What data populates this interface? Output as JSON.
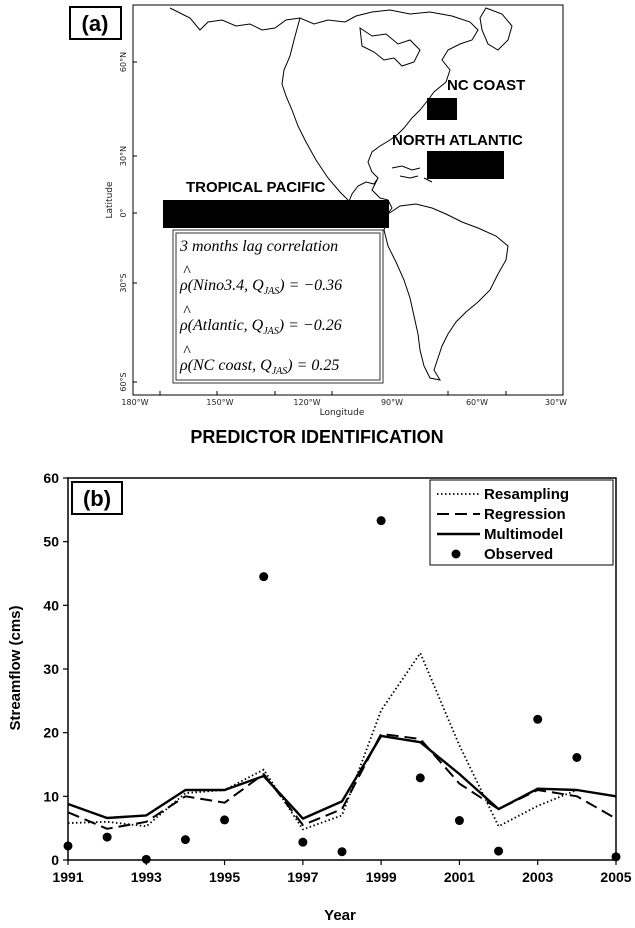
{
  "panel_a": {
    "label": "(a)",
    "regions": {
      "nc_coast": "NC COAST",
      "north_atlantic": "NORTH ATLANTIC",
      "tropical_pacific": "TROPICAL PACIFIC"
    },
    "lon_ticks": [
      "180°W",
      "150°W",
      "120°W",
      "90°W",
      "60°W",
      "30°W"
    ],
    "lat_ticks": [
      "60°N",
      "30°N",
      "0°",
      "30°S",
      "60°S"
    ],
    "xlabel": "Longitude",
    "ylabel": "Latitude",
    "correlation_box": {
      "title": "3 months lag correlation",
      "rows": [
        "ρ̂(Nino3.4, Q_JAS) = −0.36",
        "ρ̂(Atlantic, Q_JAS) = −0.26",
        "ρ̂(NC coast, Q_JAS) = 0.25"
      ],
      "rows_display": [
        {
          "arg": "Nino3.4",
          "value": "−0.36"
        },
        {
          "arg": "Atlantic",
          "value": "−0.26"
        },
        {
          "arg": "NC coast",
          "value": "0.25"
        }
      ],
      "subscript": "JAS",
      "symbol": "ρ",
      "hat": "^"
    },
    "title": "PREDICTOR IDENTIFICATION"
  },
  "chart_data": {
    "type": "line",
    "label": "(b)",
    "xlabel": "Year",
    "ylabel": "Streamflow (cms)",
    "xlim": [
      1991,
      2005
    ],
    "ylim": [
      0,
      60
    ],
    "x_ticks": [
      "1991",
      "1993",
      "1995",
      "1997",
      "1999",
      "2001",
      "2003",
      "2005"
    ],
    "y_ticks": [
      "0",
      "10",
      "20",
      "30",
      "40",
      "50",
      "60"
    ],
    "legend_position": "top-right",
    "x": [
      1991,
      1992,
      1993,
      1994,
      1995,
      1996,
      1997,
      1998,
      1999,
      2000,
      2001,
      2002,
      2003,
      2004,
      2005
    ],
    "series": [
      {
        "name": "Resampling",
        "style": "dotted",
        "values": [
          5.8,
          6.0,
          5.3,
          10.5,
          11.0,
          14.2,
          4.8,
          7.0,
          23.5,
          32.5,
          18.0,
          5.3,
          8.5,
          11.0,
          10.0
        ]
      },
      {
        "name": "Regression",
        "style": "dashed",
        "values": [
          7.5,
          4.9,
          6.0,
          10.0,
          9.0,
          13.5,
          5.5,
          8.0,
          19.8,
          19.0,
          12.0,
          8.0,
          11.0,
          10.0,
          6.5
        ]
      },
      {
        "name": "Multimodel",
        "style": "solid",
        "values": [
          8.8,
          6.6,
          7.0,
          11.0,
          11.0,
          13.2,
          6.5,
          9.2,
          19.5,
          18.5,
          13.5,
          8.0,
          11.2,
          11.0,
          10.0
        ]
      },
      {
        "name": "Observed",
        "style": "marker",
        "values": [
          2.2,
          3.6,
          0.1,
          3.2,
          6.3,
          44.5,
          2.8,
          1.3,
          53.3,
          12.9,
          6.2,
          1.4,
          22.1,
          16.1,
          0.5
        ]
      }
    ]
  }
}
